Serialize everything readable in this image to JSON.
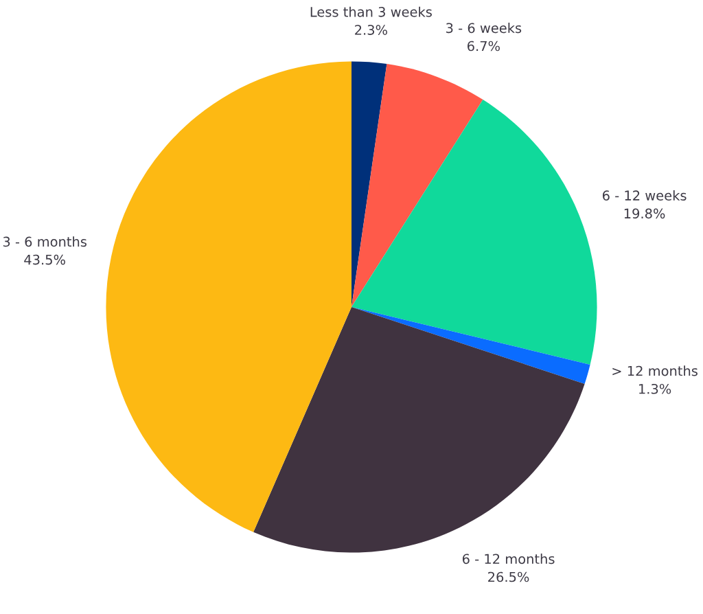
{
  "chart_data": {
    "type": "pie",
    "categories": [
      "Less than 3 weeks",
      "3 - 6 weeks",
      "6 - 12 weeks",
      "> 12 months",
      "6 - 12 months",
      "3 - 6 months"
    ],
    "values": [
      2.3,
      6.7,
      19.8,
      1.3,
      26.5,
      43.5
    ],
    "colors": [
      "#00307a",
      "#ff5a4a",
      "#10d99b",
      "#0a6cff",
      "#403340",
      "#fdb913"
    ],
    "value_labels": [
      "2.3%",
      "6.7%",
      "19.8%",
      "1.3%",
      "26.5%",
      "43.5%"
    ]
  }
}
